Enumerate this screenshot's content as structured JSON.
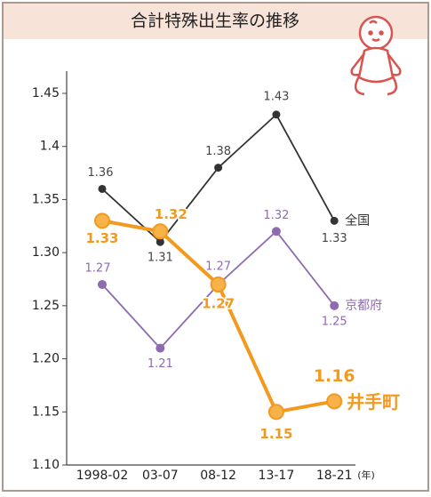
{
  "chart_data": {
    "type": "line",
    "title": "合計特殊出生率の推移",
    "categories": [
      "1998-02",
      "03-07",
      "08-12",
      "13-17",
      "18-21"
    ],
    "x_unit": "(年)",
    "ylim": [
      1.1,
      1.45
    ],
    "yticks": [
      {
        "value": 1.1,
        "label": "1.10"
      },
      1.15,
      {
        "value": 1.2,
        "label": "1.20"
      },
      1.25,
      {
        "value": 1.3,
        "label": "1.30"
      },
      1.35,
      1.4,
      1.45
    ],
    "series": [
      {
        "name": "全国",
        "color": "#333333",
        "values": [
          1.36,
          1.31,
          1.38,
          1.43,
          1.33
        ]
      },
      {
        "name": "京都府",
        "color": "#8e6bb0",
        "values": [
          1.27,
          1.21,
          1.27,
          1.32,
          1.25
        ]
      },
      {
        "name": "井手町",
        "color": "#f39a1e",
        "values": [
          1.33,
          1.32,
          1.27,
          1.15,
          1.16
        ]
      }
    ]
  }
}
